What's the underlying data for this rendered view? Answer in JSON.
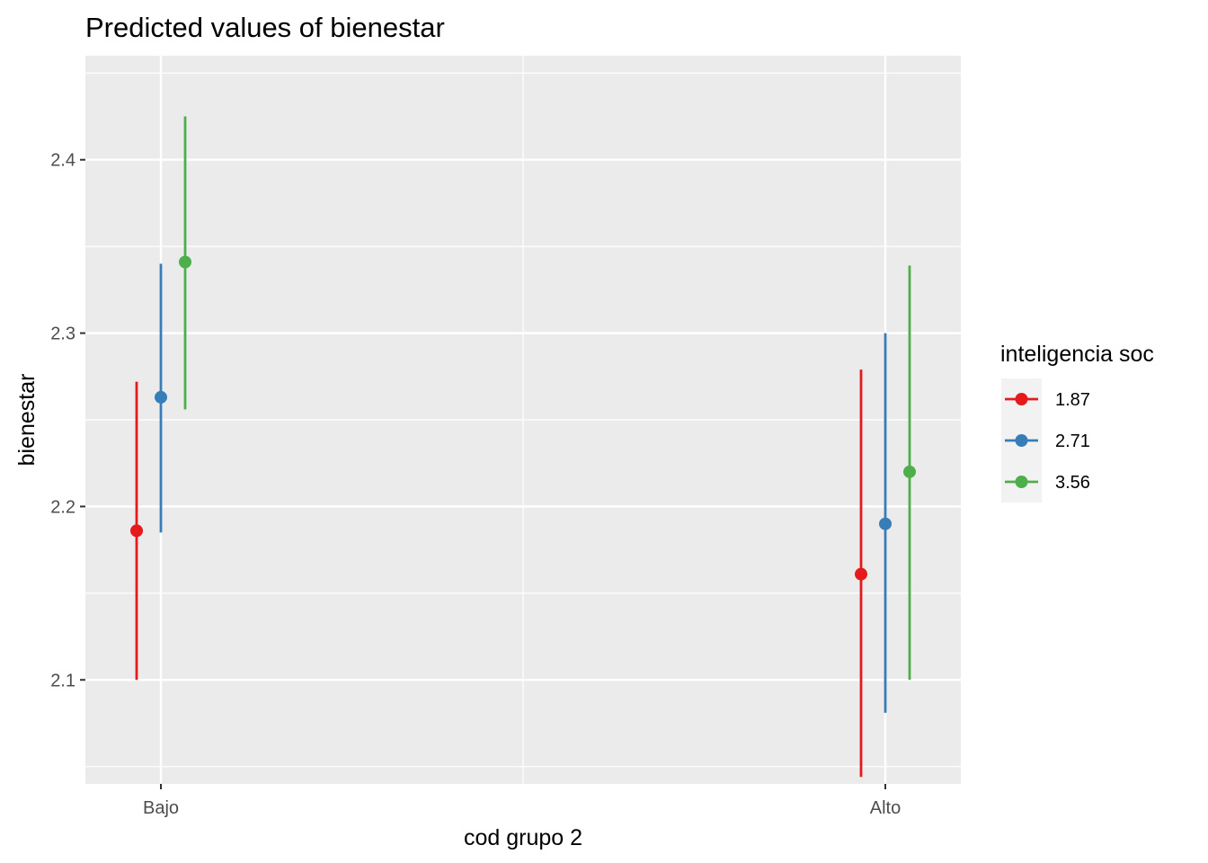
{
  "chart_data": {
    "type": "scatter",
    "title": "Predicted values of bienestar",
    "xlabel": "cod grupo 2",
    "ylabel": "bienestar",
    "categories": [
      "Bajo",
      "Alto"
    ],
    "ylim": [
      2.04,
      2.46
    ],
    "y_ticks": [
      2.1,
      2.2,
      2.3,
      2.4
    ],
    "y_tick_labels": [
      "2.1",
      "2.2",
      "2.3",
      "2.4"
    ],
    "grid": true,
    "legend": {
      "title": "inteligencia soc",
      "placement": "right"
    },
    "series": [
      {
        "name": "1.87",
        "color": "#E41A1C",
        "values": [
          2.186,
          2.161
        ],
        "lower": [
          2.1,
          2.044
        ],
        "upper": [
          2.272,
          2.279
        ]
      },
      {
        "name": "2.71",
        "color": "#377EB8",
        "values": [
          2.263,
          2.19
        ],
        "lower": [
          2.185,
          2.081
        ],
        "upper": [
          2.34,
          2.3
        ]
      },
      {
        "name": "3.56",
        "color": "#4DAF4A",
        "values": [
          2.341,
          2.22
        ],
        "lower": [
          2.256,
          2.1
        ],
        "upper": [
          2.425,
          2.339
        ]
      }
    ]
  }
}
